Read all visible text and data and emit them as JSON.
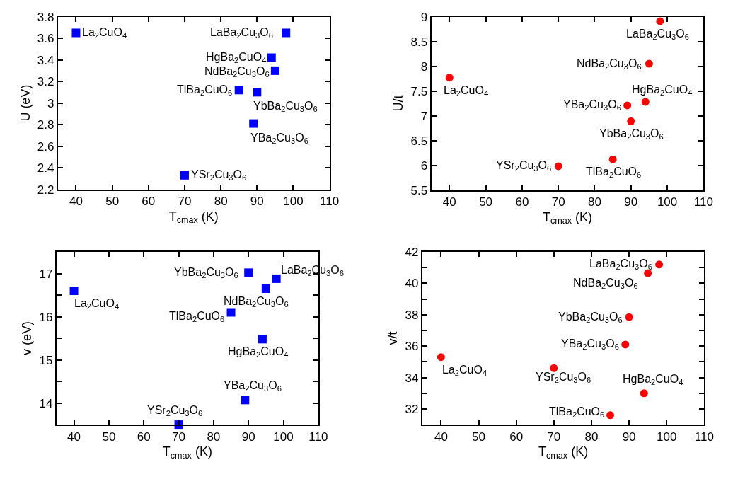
{
  "chart_data": [
    {
      "type": "scatter",
      "x": [
        40,
        70,
        85,
        89,
        90,
        94,
        95,
        98
      ],
      "xlabel": "T$_{cmax}$ (K)",
      "ylabel": "U (eV)",
      "xlim": [
        35,
        110
      ],
      "xticks": [
        40,
        50,
        60,
        70,
        80,
        90,
        100,
        110
      ],
      "ylim": [
        2.2,
        3.8
      ],
      "yticks": [
        2.2,
        2.4,
        2.6,
        2.8,
        3,
        3.2,
        3.4,
        3.6,
        3.8
      ],
      "marker": "square",
      "series": [
        {
          "color": "#0000ff",
          "values": [
            3.65,
            2.33,
            3.12,
            2.81,
            3.1,
            3.42,
            3.3,
            3.65
          ]
        }
      ],
      "annotations": [
        {
          "text": "La$_{2}$CuO$_{4}$",
          "x": 40,
          "y": 3.65
        },
        {
          "text": "YSr$_{2}$Cu$_{3}$O$_{6}$",
          "x": 70,
          "y": 2.33
        },
        {
          "text": "TlBa$_{2}$CuO$_{6}$",
          "x": 85,
          "y": 3.12
        },
        {
          "text": "YBa$_{2}$Cu$_{3}$O$_{6}$",
          "x": 89,
          "y": 2.81
        },
        {
          "text": "YbBa$_{2}$Cu$_{3}$O$_{6}$",
          "x": 90,
          "y": 3.1
        },
        {
          "text": "HgBa$_{2}$CuO$_{4}$",
          "x": 94,
          "y": 3.42
        },
        {
          "text": "NdBa$_{2}$Cu$_{3}$O$_{6}$",
          "x": 95,
          "y": 3.3
        },
        {
          "text": "LaBa$_{2}$Cu$_{3}$O$_{6}$",
          "x": 98,
          "y": 3.65
        }
      ]
    },
    {
      "type": "scatter",
      "x": [
        40,
        70,
        85,
        89,
        90,
        94,
        95,
        98
      ],
      "xlabel": "T$_{cmax}$ (K)",
      "ylabel": "U/t",
      "xlim": [
        35,
        110
      ],
      "xticks": [
        40,
        50,
        60,
        70,
        80,
        90,
        100,
        110
      ],
      "ylim": [
        5.5,
        9
      ],
      "yticks": [
        5.5,
        6,
        6.5,
        7,
        7.5,
        8,
        8.5,
        9
      ],
      "marker": "circle",
      "series": [
        {
          "color": "#ff0000",
          "values": [
            7.77,
            5.98,
            6.12,
            7.21,
            6.89,
            7.28,
            8.05,
            8.91
          ]
        }
      ],
      "annotations": [
        {
          "text": "La$_{2}$CuO$_{4}$",
          "x": 40,
          "y": 7.77
        },
        {
          "text": "YSr$_{2}$Cu$_{3}$O$_{6}$",
          "x": 70,
          "y": 5.98
        },
        {
          "text": "TlBa$_{2}$CuO$_{6}$",
          "x": 85,
          "y": 6.12
        },
        {
          "text": "YBa$_{2}$Cu$_{3}$O$_{6}$",
          "x": 89,
          "y": 7.21
        },
        {
          "text": "YbBa$_{2}$Cu$_{3}$O$_{6}$",
          "x": 90,
          "y": 6.89
        },
        {
          "text": "HgBa$_{2}$CuO$_{4}$",
          "x": 94,
          "y": 7.28
        },
        {
          "text": "NdBa$_{2}$Cu$_{3}$O$_{6}$",
          "x": 95,
          "y": 8.05
        },
        {
          "text": "LaBa$_{2}$Cu$_{3}$O$_{6}$",
          "x": 98,
          "y": 8.91
        }
      ]
    },
    {
      "type": "scatter",
      "x": [
        40,
        70,
        85,
        89,
        90,
        94,
        95,
        98
      ],
      "xlabel": "T$_{cmax}$ (K)",
      "ylabel": "v (eV)",
      "xlim": [
        35,
        110
      ],
      "xticks": [
        40,
        50,
        60,
        70,
        80,
        90,
        100,
        110
      ],
      "ylim": [
        13.5,
        17.5
      ],
      "yticks": [
        {
          "value": 13.5,
          "label": null
        },
        14,
        {
          "value": 14.5,
          "label": null
        },
        15,
        {
          "value": 15.5,
          "label": null
        },
        16,
        {
          "value": 16.5,
          "label": null
        },
        17,
        {
          "value": 17.5,
          "label": null
        }
      ],
      "marker": "square",
      "series": [
        {
          "color": "#0000ff",
          "values": [
            16.6,
            13.5,
            16.1,
            14.07,
            17.02,
            15.48,
            16.65,
            16.88
          ]
        }
      ],
      "annotations": [
        {
          "text": "La$_{2}$CuO$_{4}$",
          "x": 40,
          "y": 16.6
        },
        {
          "text": "YSr$_{2}$Cu$_{3}$O$_{6}$",
          "x": 70,
          "y": 13.5
        },
        {
          "text": "TlBa$_{2}$CuO$_{6}$",
          "x": 85,
          "y": 16.1
        },
        {
          "text": "YBa$_{2}$Cu$_{3}$O$_{6}$",
          "x": 89,
          "y": 14.07
        },
        {
          "text": "YbBa$_{2}$Cu$_{3}$O$_{6}$",
          "x": 90,
          "y": 17.02
        },
        {
          "text": "HgBa$_{2}$CuO$_{4}$",
          "x": 94,
          "y": 15.48
        },
        {
          "text": "NdBa$_{2}$Cu$_{3}$O$_{6}$",
          "x": 95,
          "y": 16.65
        },
        {
          "text": "LaBa$_{2}$Cu$_{3}$O$_{6}$",
          "x": 98,
          "y": 16.88
        }
      ]
    },
    {
      "type": "scatter",
      "x": [
        40,
        70,
        85,
        89,
        90,
        94,
        95,
        98
      ],
      "xlabel": "T$_{cmax}$ (K)",
      "ylabel": "v/t",
      "xlim": [
        35,
        110
      ],
      "xticks": [
        40,
        50,
        60,
        70,
        80,
        90,
        100,
        110
      ],
      "ylim": [
        31,
        42
      ],
      "yticks": [
        {
          "value": 31,
          "label": null
        },
        32,
        {
          "value": 33,
          "label": null
        },
        34,
        {
          "value": 35,
          "label": null
        },
        36,
        {
          "value": 37,
          "label": null
        },
        38,
        {
          "value": 39,
          "label": null
        },
        40,
        {
          "value": 41,
          "label": null
        },
        42
      ],
      "marker": "circle",
      "series": [
        {
          "color": "#ff0000",
          "values": [
            35.3,
            34.6,
            31.6,
            36.1,
            37.85,
            33.0,
            40.65,
            41.2
          ]
        }
      ],
      "annotations": [
        {
          "text": "La$_{2}$CuO$_{4}$",
          "x": 40,
          "y": 35.3
        },
        {
          "text": "YSr$_{2}$Cu$_{3}$O$_{6}$",
          "x": 70,
          "y": 34.6
        },
        {
          "text": "TlBa$_{2}$CuO$_{6}$",
          "x": 85,
          "y": 31.6
        },
        {
          "text": "YBa$_{2}$Cu$_{3}$O$_{6}$",
          "x": 89,
          "y": 36.1
        },
        {
          "text": "YbBa$_{2}$Cu$_{3}$O$_{6}$",
          "x": 90,
          "y": 37.85
        },
        {
          "text": "HgBa$_{2}$CuO$_{4}$",
          "x": 94,
          "y": 33.0
        },
        {
          "text": "NdBa$_{2}$Cu$_{3}$O$_{6}$",
          "x": 95,
          "y": 40.65
        },
        {
          "text": "LaBa$_{2}$Cu$_{3}$O$_{6}$",
          "x": 98,
          "y": 41.2
        }
      ]
    }
  ]
}
